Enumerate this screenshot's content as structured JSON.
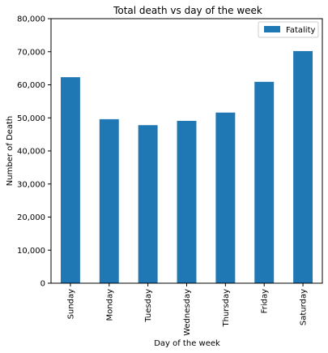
{
  "chart_data": {
    "type": "bar",
    "title": "Total death vs day of the week",
    "xlabel": "Day of the week",
    "ylabel": "Number of Death",
    "categories": [
      "Sunday",
      "Monday",
      "Tuesday",
      "Wednesday",
      "Thursday",
      "Friday",
      "Saturday"
    ],
    "series": [
      {
        "name": "Fatality",
        "values": [
          62300,
          49600,
          47800,
          49100,
          51600,
          60900,
          70200
        ],
        "color": "#1f77b4"
      }
    ],
    "ylim": [
      0,
      80000
    ],
    "yticks": [
      0,
      10000,
      20000,
      30000,
      40000,
      50000,
      60000,
      70000,
      80000
    ],
    "ytick_labels": [
      "0",
      "10,000",
      "20,000",
      "30,000",
      "40,000",
      "50,000",
      "60,000",
      "70,000",
      "80,000"
    ],
    "grid": false,
    "legend_position": "top-right"
  }
}
